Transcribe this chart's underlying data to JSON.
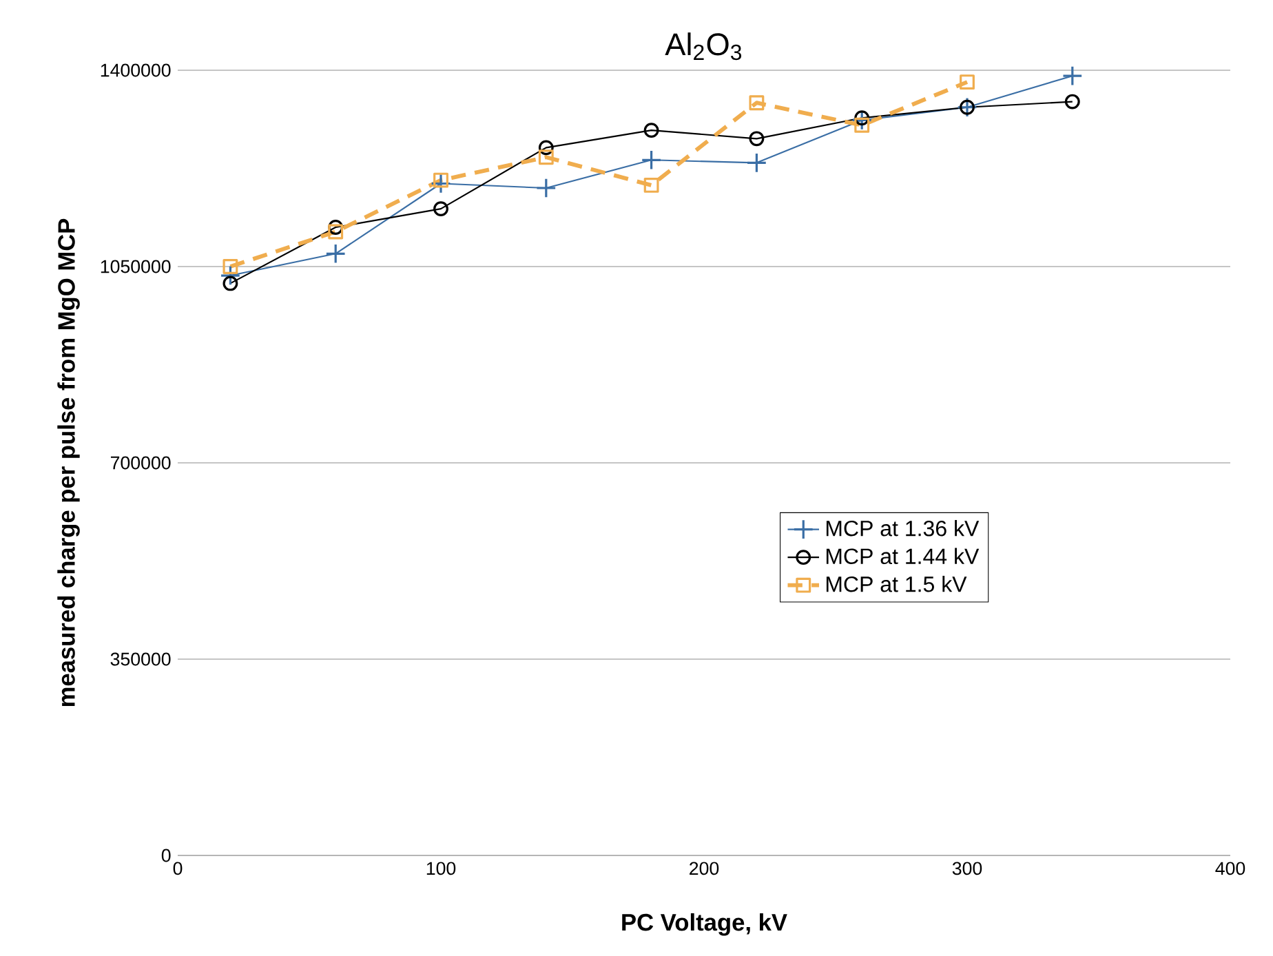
{
  "chart_data": {
    "type": "line",
    "title": "Al$_{2}$O$_{3}$",
    "xlabel": "PC Voltage, kV",
    "ylabel": "measured charge per pulse from MgO MCP",
    "x": [
      20,
      60,
      100,
      140,
      180,
      220,
      260,
      300,
      340
    ],
    "series": [
      {
        "name": "MCP at 1.36 kV",
        "color": "#3a6ea5",
        "marker": "cross",
        "line_style": "solid",
        "values": [
          1034000,
          1073000,
          1198000,
          1190000,
          1240000,
          1235000,
          1311000,
          1334000,
          1390000
        ]
      },
      {
        "name": "MCP at 1.44 kV",
        "color": "#000000",
        "marker": "circle",
        "line_style": "solid",
        "values": [
          1020000,
          1120000,
          1153000,
          1262000,
          1293000,
          1278000,
          1315000,
          1334000,
          1344000
        ]
      },
      {
        "name": "MCP at 1.5 kV",
        "color": "#f0ad4e",
        "marker": "square",
        "line_style": "dashed",
        "values": [
          1050000,
          1112000,
          1204000,
          1245000,
          1195000,
          1342000,
          1302000,
          1379000,
          null
        ]
      }
    ],
    "xlim": [
      0,
      400
    ],
    "xticks": [
      0,
      100,
      200,
      300,
      400
    ],
    "ylim": [
      0,
      1400000
    ],
    "yticks": [
      0,
      350000,
      700000,
      1050000,
      1400000
    ],
    "grid": "y",
    "legend": "right"
  }
}
